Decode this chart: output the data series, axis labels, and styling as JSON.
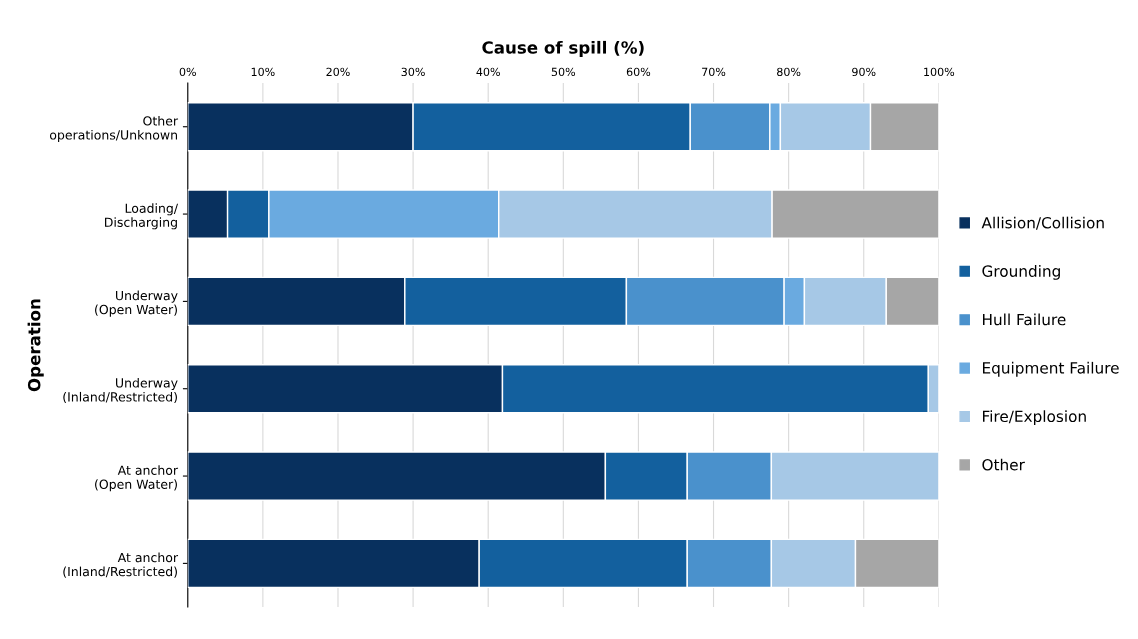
{
  "chart_data": {
    "type": "bar",
    "orientation": "horizontal",
    "stacked": true,
    "xlabel": "Cause of spill (%)",
    "ylabel": "Operation",
    "categories": [
      "Other\noperations/Unknown",
      "Loading/\nDischarging",
      "Underway\n(Open Water)",
      "Underway\n(Inland/Restricted)",
      "At anchor\n(Open Water)",
      "At anchor\n(Inland/Restricted)"
    ],
    "series": [
      {
        "name": "Allision/Collision",
        "color": "#08305e",
        "values": [
          30.0,
          5.3,
          28.9,
          41.9,
          55.6,
          38.8
        ]
      },
      {
        "name": "Grounding",
        "color": "#13609e",
        "values": [
          36.9,
          5.5,
          29.5,
          56.7,
          10.9,
          27.7
        ]
      },
      {
        "name": "Hull Failure",
        "color": "#4a91cc",
        "values": [
          10.6,
          0,
          21.0,
          0,
          11.2,
          11.2
        ]
      },
      {
        "name": "Equipment Failure",
        "color": "#6aaae0",
        "values": [
          1.4,
          30.6,
          2.7,
          0,
          0,
          0
        ]
      },
      {
        "name": "Fire/Explosion",
        "color": "#a6c8e6",
        "values": [
          12.0,
          36.4,
          10.9,
          1.4,
          22.3,
          11.2
        ]
      },
      {
        "name": "Other",
        "color": "#a6a6a6",
        "values": [
          9.1,
          22.2,
          7.0,
          0,
          0,
          11.1
        ]
      }
    ],
    "xlim": [
      0,
      100
    ],
    "xticks": [
      {
        "value": 0,
        "label": "0%"
      },
      {
        "value": 10,
        "label": "10%"
      },
      {
        "value": 20,
        "label": "20%"
      },
      {
        "value": 30,
        "label": "30%"
      },
      {
        "value": 40,
        "label": "40%"
      },
      {
        "value": 50,
        "label": "50%"
      },
      {
        "value": 60,
        "label": "60%"
      },
      {
        "value": 70,
        "label": "70%"
      },
      {
        "value": 80,
        "label": "80%"
      },
      {
        "value": 90,
        "label": "90%"
      },
      {
        "value": 100,
        "label": "100%"
      }
    ],
    "grid": "x",
    "legend": "right"
  }
}
